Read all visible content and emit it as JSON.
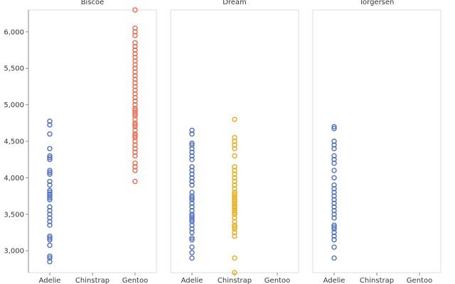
{
  "chart_data": {
    "type": "scatter",
    "facets": [
      "Biscoe",
      "Dream",
      "Torgersen"
    ],
    "categories": [
      "Adelie",
      "Chinstrap",
      "Gentoo"
    ],
    "ylim": [
      2700,
      6300
    ],
    "yticks": [
      3000,
      3500,
      4000,
      4500,
      5000,
      5500,
      6000
    ],
    "ytick_labels": [
      "3,000",
      "3,500",
      "4,000",
      "4,500",
      "5,000",
      "5,500",
      "6,000"
    ],
    "series_colors": {
      "Adelie": "#4c6fc7",
      "Chinstrap": "#e9ab16",
      "Gentoo": "#ee6a50"
    },
    "points": {
      "Biscoe": {
        "Adelie": [
          2850,
          2900,
          2925,
          3075,
          3150,
          3175,
          3200,
          3350,
          3400,
          3450,
          3500,
          3550,
          3600,
          3700,
          3725,
          3750,
          3775,
          3800,
          3825,
          3900,
          3950,
          4050,
          4075,
          4100,
          4250,
          4275,
          4300,
          4400,
          4600,
          4725,
          4775
        ],
        "Chinstrap": [],
        "Gentoo": [
          3950,
          4100,
          4150,
          4200,
          4300,
          4350,
          4400,
          4450,
          4500,
          4550,
          4575,
          4600,
          4650,
          4700,
          4725,
          4750,
          4800,
          4850,
          4875,
          4900,
          4925,
          4950,
          5000,
          5050,
          5100,
          5150,
          5200,
          5250,
          5300,
          5350,
          5400,
          5450,
          5500,
          5550,
          5600,
          5650,
          5700,
          5750,
          5800,
          5850,
          5950,
          6000,
          6050,
          6300
        ]
      },
      "Dream": {
        "Adelie": [
          2900,
          2975,
          3050,
          3150,
          3175,
          3250,
          3300,
          3350,
          3400,
          3425,
          3450,
          3475,
          3500,
          3550,
          3600,
          3650,
          3700,
          3725,
          3750,
          3800,
          3900,
          3950,
          4000,
          4050,
          4100,
          4150,
          4250,
          4300,
          4350,
          4400,
          4450,
          4475,
          4600,
          4650
        ],
        "Chinstrap": [
          2700,
          2900,
          3200,
          3250,
          3300,
          3325,
          3350,
          3400,
          3450,
          3500,
          3525,
          3550,
          3575,
          3600,
          3625,
          3650,
          3675,
          3700,
          3725,
          3750,
          3775,
          3800,
          3850,
          3900,
          3950,
          4000,
          4050,
          4100,
          4150,
          4300,
          4400,
          4450,
          4500,
          4550,
          4800
        ],
        "Gentoo": []
      },
      "Torgersen": {
        "Adelie": [
          2900,
          3050,
          3150,
          3200,
          3250,
          3300,
          3325,
          3350,
          3450,
          3500,
          3550,
          3600,
          3650,
          3700,
          3750,
          3800,
          3850,
          3900,
          4000,
          4100,
          4200,
          4250,
          4300,
          4400,
          4450,
          4500,
          4675,
          4700
        ],
        "Chinstrap": [],
        "Gentoo": []
      }
    }
  }
}
